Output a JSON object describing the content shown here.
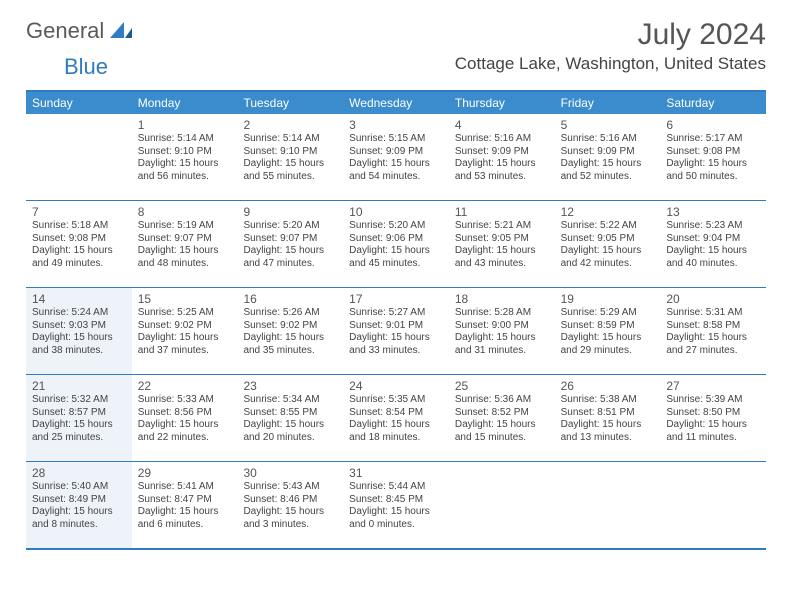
{
  "logo": {
    "general": "General",
    "blue": "Blue"
  },
  "title": "July 2024",
  "location": "Cottage Lake, Washington, United States",
  "colors": {
    "header_bg": "#3a8ccc",
    "border": "#2f7bc4",
    "shaded_bg": "#edf3f8",
    "text": "#333333"
  },
  "day_headers": [
    "Sunday",
    "Monday",
    "Tuesday",
    "Wednesday",
    "Thursday",
    "Friday",
    "Saturday"
  ],
  "weeks": [
    [
      {
        "num": "",
        "sunrise": "",
        "sunset": "",
        "daylight1": "",
        "daylight2": "",
        "shaded": false
      },
      {
        "num": "1",
        "sunrise": "Sunrise: 5:14 AM",
        "sunset": "Sunset: 9:10 PM",
        "daylight1": "Daylight: 15 hours",
        "daylight2": "and 56 minutes.",
        "shaded": false
      },
      {
        "num": "2",
        "sunrise": "Sunrise: 5:14 AM",
        "sunset": "Sunset: 9:10 PM",
        "daylight1": "Daylight: 15 hours",
        "daylight2": "and 55 minutes.",
        "shaded": false
      },
      {
        "num": "3",
        "sunrise": "Sunrise: 5:15 AM",
        "sunset": "Sunset: 9:09 PM",
        "daylight1": "Daylight: 15 hours",
        "daylight2": "and 54 minutes.",
        "shaded": false
      },
      {
        "num": "4",
        "sunrise": "Sunrise: 5:16 AM",
        "sunset": "Sunset: 9:09 PM",
        "daylight1": "Daylight: 15 hours",
        "daylight2": "and 53 minutes.",
        "shaded": false
      },
      {
        "num": "5",
        "sunrise": "Sunrise: 5:16 AM",
        "sunset": "Sunset: 9:09 PM",
        "daylight1": "Daylight: 15 hours",
        "daylight2": "and 52 minutes.",
        "shaded": false
      },
      {
        "num": "6",
        "sunrise": "Sunrise: 5:17 AM",
        "sunset": "Sunset: 9:08 PM",
        "daylight1": "Daylight: 15 hours",
        "daylight2": "and 50 minutes.",
        "shaded": false
      }
    ],
    [
      {
        "num": "7",
        "sunrise": "Sunrise: 5:18 AM",
        "sunset": "Sunset: 9:08 PM",
        "daylight1": "Daylight: 15 hours",
        "daylight2": "and 49 minutes.",
        "shaded": false
      },
      {
        "num": "8",
        "sunrise": "Sunrise: 5:19 AM",
        "sunset": "Sunset: 9:07 PM",
        "daylight1": "Daylight: 15 hours",
        "daylight2": "and 48 minutes.",
        "shaded": false
      },
      {
        "num": "9",
        "sunrise": "Sunrise: 5:20 AM",
        "sunset": "Sunset: 9:07 PM",
        "daylight1": "Daylight: 15 hours",
        "daylight2": "and 47 minutes.",
        "shaded": false
      },
      {
        "num": "10",
        "sunrise": "Sunrise: 5:20 AM",
        "sunset": "Sunset: 9:06 PM",
        "daylight1": "Daylight: 15 hours",
        "daylight2": "and 45 minutes.",
        "shaded": false
      },
      {
        "num": "11",
        "sunrise": "Sunrise: 5:21 AM",
        "sunset": "Sunset: 9:05 PM",
        "daylight1": "Daylight: 15 hours",
        "daylight2": "and 43 minutes.",
        "shaded": false
      },
      {
        "num": "12",
        "sunrise": "Sunrise: 5:22 AM",
        "sunset": "Sunset: 9:05 PM",
        "daylight1": "Daylight: 15 hours",
        "daylight2": "and 42 minutes.",
        "shaded": false
      },
      {
        "num": "13",
        "sunrise": "Sunrise: 5:23 AM",
        "sunset": "Sunset: 9:04 PM",
        "daylight1": "Daylight: 15 hours",
        "daylight2": "and 40 minutes.",
        "shaded": false
      }
    ],
    [
      {
        "num": "14",
        "sunrise": "Sunrise: 5:24 AM",
        "sunset": "Sunset: 9:03 PM",
        "daylight1": "Daylight: 15 hours",
        "daylight2": "and 38 minutes.",
        "shaded": true
      },
      {
        "num": "15",
        "sunrise": "Sunrise: 5:25 AM",
        "sunset": "Sunset: 9:02 PM",
        "daylight1": "Daylight: 15 hours",
        "daylight2": "and 37 minutes.",
        "shaded": false
      },
      {
        "num": "16",
        "sunrise": "Sunrise: 5:26 AM",
        "sunset": "Sunset: 9:02 PM",
        "daylight1": "Daylight: 15 hours",
        "daylight2": "and 35 minutes.",
        "shaded": false
      },
      {
        "num": "17",
        "sunrise": "Sunrise: 5:27 AM",
        "sunset": "Sunset: 9:01 PM",
        "daylight1": "Daylight: 15 hours",
        "daylight2": "and 33 minutes.",
        "shaded": false
      },
      {
        "num": "18",
        "sunrise": "Sunrise: 5:28 AM",
        "sunset": "Sunset: 9:00 PM",
        "daylight1": "Daylight: 15 hours",
        "daylight2": "and 31 minutes.",
        "shaded": false
      },
      {
        "num": "19",
        "sunrise": "Sunrise: 5:29 AM",
        "sunset": "Sunset: 8:59 PM",
        "daylight1": "Daylight: 15 hours",
        "daylight2": "and 29 minutes.",
        "shaded": false
      },
      {
        "num": "20",
        "sunrise": "Sunrise: 5:31 AM",
        "sunset": "Sunset: 8:58 PM",
        "daylight1": "Daylight: 15 hours",
        "daylight2": "and 27 minutes.",
        "shaded": false
      }
    ],
    [
      {
        "num": "21",
        "sunrise": "Sunrise: 5:32 AM",
        "sunset": "Sunset: 8:57 PM",
        "daylight1": "Daylight: 15 hours",
        "daylight2": "and 25 minutes.",
        "shaded": true
      },
      {
        "num": "22",
        "sunrise": "Sunrise: 5:33 AM",
        "sunset": "Sunset: 8:56 PM",
        "daylight1": "Daylight: 15 hours",
        "daylight2": "and 22 minutes.",
        "shaded": false
      },
      {
        "num": "23",
        "sunrise": "Sunrise: 5:34 AM",
        "sunset": "Sunset: 8:55 PM",
        "daylight1": "Daylight: 15 hours",
        "daylight2": "and 20 minutes.",
        "shaded": false
      },
      {
        "num": "24",
        "sunrise": "Sunrise: 5:35 AM",
        "sunset": "Sunset: 8:54 PM",
        "daylight1": "Daylight: 15 hours",
        "daylight2": "and 18 minutes.",
        "shaded": false
      },
      {
        "num": "25",
        "sunrise": "Sunrise: 5:36 AM",
        "sunset": "Sunset: 8:52 PM",
        "daylight1": "Daylight: 15 hours",
        "daylight2": "and 15 minutes.",
        "shaded": false
      },
      {
        "num": "26",
        "sunrise": "Sunrise: 5:38 AM",
        "sunset": "Sunset: 8:51 PM",
        "daylight1": "Daylight: 15 hours",
        "daylight2": "and 13 minutes.",
        "shaded": false
      },
      {
        "num": "27",
        "sunrise": "Sunrise: 5:39 AM",
        "sunset": "Sunset: 8:50 PM",
        "daylight1": "Daylight: 15 hours",
        "daylight2": "and 11 minutes.",
        "shaded": false
      }
    ],
    [
      {
        "num": "28",
        "sunrise": "Sunrise: 5:40 AM",
        "sunset": "Sunset: 8:49 PM",
        "daylight1": "Daylight: 15 hours",
        "daylight2": "and 8 minutes.",
        "shaded": true
      },
      {
        "num": "29",
        "sunrise": "Sunrise: 5:41 AM",
        "sunset": "Sunset: 8:47 PM",
        "daylight1": "Daylight: 15 hours",
        "daylight2": "and 6 minutes.",
        "shaded": false
      },
      {
        "num": "30",
        "sunrise": "Sunrise: 5:43 AM",
        "sunset": "Sunset: 8:46 PM",
        "daylight1": "Daylight: 15 hours",
        "daylight2": "and 3 minutes.",
        "shaded": false
      },
      {
        "num": "31",
        "sunrise": "Sunrise: 5:44 AM",
        "sunset": "Sunset: 8:45 PM",
        "daylight1": "Daylight: 15 hours",
        "daylight2": "and 0 minutes.",
        "shaded": false
      },
      {
        "num": "",
        "sunrise": "",
        "sunset": "",
        "daylight1": "",
        "daylight2": "",
        "shaded": false
      },
      {
        "num": "",
        "sunrise": "",
        "sunset": "",
        "daylight1": "",
        "daylight2": "",
        "shaded": false
      },
      {
        "num": "",
        "sunrise": "",
        "sunset": "",
        "daylight1": "",
        "daylight2": "",
        "shaded": false
      }
    ]
  ]
}
